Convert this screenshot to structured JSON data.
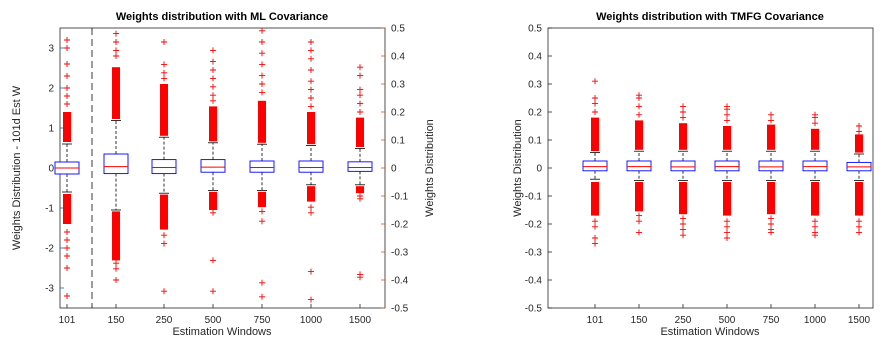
{
  "chart_data": [
    {
      "type": "boxplot",
      "title": "Weights distribution with ML Covariance",
      "xlabel": "Estimation Windows",
      "categories": [
        "101",
        "150",
        "250",
        "500",
        "750",
        "1000",
        "1500"
      ],
      "left_axis": {
        "label": "Weights Distribution - 101d Est W",
        "color": "#0072BD",
        "ylim": [
          -3.5,
          3.5
        ],
        "ticks": [
          "-3",
          "-2",
          "-1",
          "0",
          "1",
          "2",
          "3"
        ],
        "applies_to": [
          "101"
        ]
      },
      "right_axis": {
        "label": "Weights Distribution",
        "color": "#D95319",
        "ylim": [
          -0.5,
          0.5
        ],
        "ticks": [
          "-0.5",
          "-0.4",
          "-0.3",
          "-0.2",
          "-0.1",
          "0",
          "0.1",
          "0.2",
          "0.3",
          "0.4",
          "0.5"
        ],
        "applies_to": [
          "150",
          "250",
          "500",
          "750",
          "1000",
          "1500"
        ]
      },
      "separator_after": "101",
      "boxes": [
        {
          "category": "101",
          "axis": "left",
          "q1": -0.15,
          "median": 0.0,
          "q3": 0.15,
          "whisker_low": -0.6,
          "whisker_high": 0.6,
          "outlier_hi": [
            0.65,
            1.4
          ],
          "outlier_lo": [
            -0.65,
            -1.4
          ],
          "sparse_hi": [
            1.6,
            1.8,
            2.0,
            2.3,
            2.6,
            3.0,
            3.2
          ],
          "sparse_lo": [
            -1.6,
            -1.8,
            -2.0,
            -2.2,
            -2.5,
            -3.2
          ]
        },
        {
          "category": "150",
          "axis": "right",
          "q1": -0.02,
          "median": 0.005,
          "q3": 0.05,
          "whisker_low": -0.15,
          "whisker_high": 0.17,
          "outlier_hi": [
            0.175,
            0.36
          ],
          "outlier_lo": [
            -0.155,
            -0.33
          ],
          "sparse_hi": [
            0.4,
            0.42,
            0.45,
            0.48
          ],
          "sparse_lo": [
            -0.34,
            -0.36,
            -0.4
          ]
        },
        {
          "category": "250",
          "axis": "right",
          "q1": -0.02,
          "median": 0.002,
          "q3": 0.03,
          "whisker_low": -0.09,
          "whisker_high": 0.11,
          "outlier_hi": [
            0.115,
            0.3
          ],
          "outlier_lo": [
            -0.095,
            -0.22
          ],
          "sparse_hi": [
            0.32,
            0.34,
            0.37,
            0.45
          ],
          "sparse_lo": [
            -0.24,
            -0.27,
            -0.44
          ]
        },
        {
          "category": "500",
          "axis": "right",
          "q1": -0.015,
          "median": 0.003,
          "q3": 0.03,
          "whisker_low": -0.08,
          "whisker_high": 0.09,
          "outlier_hi": [
            0.095,
            0.22
          ],
          "outlier_lo": [
            -0.085,
            -0.15
          ],
          "sparse_hi": [
            0.24,
            0.26,
            0.29,
            0.32,
            0.35,
            0.38,
            0.42
          ],
          "sparse_lo": [
            -0.16,
            -0.33,
            -0.44
          ]
        },
        {
          "category": "750",
          "axis": "right",
          "q1": -0.015,
          "median": 0.002,
          "q3": 0.025,
          "whisker_low": -0.08,
          "whisker_high": 0.085,
          "outlier_hi": [
            0.09,
            0.24
          ],
          "outlier_lo": [
            -0.085,
            -0.14
          ],
          "sparse_hi": [
            0.27,
            0.3,
            0.33,
            0.37,
            0.41,
            0.45,
            0.49
          ],
          "sparse_lo": [
            -0.155,
            -0.19,
            -0.41,
            -0.46
          ]
        },
        {
          "category": "1000",
          "axis": "right",
          "q1": -0.015,
          "median": 0.002,
          "q3": 0.025,
          "whisker_low": -0.06,
          "whisker_high": 0.08,
          "outlier_hi": [
            0.085,
            0.2
          ],
          "outlier_lo": [
            -0.065,
            -0.12
          ],
          "sparse_hi": [
            0.22,
            0.25,
            0.28,
            0.31,
            0.35,
            0.39,
            0.42,
            0.45
          ],
          "sparse_lo": [
            -0.14,
            -0.16,
            -0.37,
            -0.47
          ]
        },
        {
          "category": "1500",
          "axis": "right",
          "q1": -0.012,
          "median": 0.002,
          "q3": 0.022,
          "whisker_low": -0.06,
          "whisker_high": 0.07,
          "outlier_hi": [
            0.075,
            0.18
          ],
          "outlier_lo": [
            -0.065,
            -0.09
          ],
          "sparse_hi": [
            0.2,
            0.23,
            0.26,
            0.28,
            0.33,
            0.36
          ],
          "sparse_lo": [
            -0.1,
            -0.11,
            -0.38,
            -0.39
          ]
        }
      ]
    },
    {
      "type": "boxplot",
      "title": "Weights distribution with TMFG Covariance",
      "xlabel": "Estimation Windows",
      "ylabel": "Weights Distribution",
      "ylim": [
        -0.5,
        0.5
      ],
      "yticks": [
        "-0.5",
        "-0.4",
        "-0.3",
        "-0.2",
        "-0.1",
        "0",
        "0.1",
        "0.2",
        "0.3",
        "0.4",
        "0.5"
      ],
      "categories": [
        "101",
        "150",
        "250",
        "500",
        "750",
        "1000",
        "1500"
      ],
      "boxes": [
        {
          "category": "101",
          "q1": -0.01,
          "median": 0.005,
          "q3": 0.025,
          "whisker_low": -0.04,
          "whisker_high": 0.055,
          "outlier_hi": [
            0.06,
            0.18
          ],
          "outlier_lo": [
            -0.05,
            -0.17
          ],
          "sparse_hi": [
            0.2,
            0.23,
            0.25,
            0.31
          ],
          "sparse_lo": [
            -0.19,
            -0.21,
            -0.25,
            -0.27
          ]
        },
        {
          "category": "150",
          "q1": -0.01,
          "median": 0.005,
          "q3": 0.025,
          "whisker_low": -0.045,
          "whisker_high": 0.06,
          "outlier_hi": [
            0.065,
            0.17
          ],
          "outlier_lo": [
            -0.05,
            -0.155
          ],
          "sparse_hi": [
            0.19,
            0.22,
            0.25,
            0.26
          ],
          "sparse_lo": [
            -0.17,
            -0.19,
            -0.23
          ]
        },
        {
          "category": "250",
          "q1": -0.01,
          "median": 0.004,
          "q3": 0.025,
          "whisker_low": -0.045,
          "whisker_high": 0.06,
          "outlier_hi": [
            0.065,
            0.16
          ],
          "outlier_lo": [
            -0.05,
            -0.165
          ],
          "sparse_hi": [
            0.18,
            0.2,
            0.22
          ],
          "sparse_lo": [
            -0.18,
            -0.2,
            -0.22,
            -0.24
          ]
        },
        {
          "category": "500",
          "q1": -0.01,
          "median": 0.005,
          "q3": 0.025,
          "whisker_low": -0.045,
          "whisker_high": 0.06,
          "outlier_hi": [
            0.065,
            0.15
          ],
          "outlier_lo": [
            -0.05,
            -0.17
          ],
          "sparse_hi": [
            0.17,
            0.19,
            0.21,
            0.22
          ],
          "sparse_lo": [
            -0.19,
            -0.21,
            -0.23,
            -0.25
          ]
        },
        {
          "category": "750",
          "q1": -0.01,
          "median": 0.004,
          "q3": 0.025,
          "whisker_low": -0.045,
          "whisker_high": 0.06,
          "outlier_hi": [
            0.065,
            0.155
          ],
          "outlier_lo": [
            -0.05,
            -0.165
          ],
          "sparse_hi": [
            0.17,
            0.19
          ],
          "sparse_lo": [
            -0.18,
            -0.2,
            -0.22,
            -0.23
          ]
        },
        {
          "category": "1000",
          "q1": -0.01,
          "median": 0.005,
          "q3": 0.025,
          "whisker_low": -0.045,
          "whisker_high": 0.06,
          "outlier_hi": [
            0.065,
            0.14
          ],
          "outlier_lo": [
            -0.05,
            -0.17
          ],
          "sparse_hi": [
            0.16,
            0.18,
            0.19
          ],
          "sparse_lo": [
            -0.19,
            -0.21,
            -0.23,
            -0.24
          ]
        },
        {
          "category": "1500",
          "q1": -0.01,
          "median": 0.004,
          "q3": 0.02,
          "whisker_low": -0.045,
          "whisker_high": 0.05,
          "outlier_hi": [
            0.055,
            0.12
          ],
          "outlier_lo": [
            -0.05,
            -0.17
          ],
          "sparse_hi": [
            0.13,
            0.15
          ],
          "sparse_lo": [
            -0.19,
            -0.21,
            -0.23
          ]
        }
      ]
    }
  ]
}
